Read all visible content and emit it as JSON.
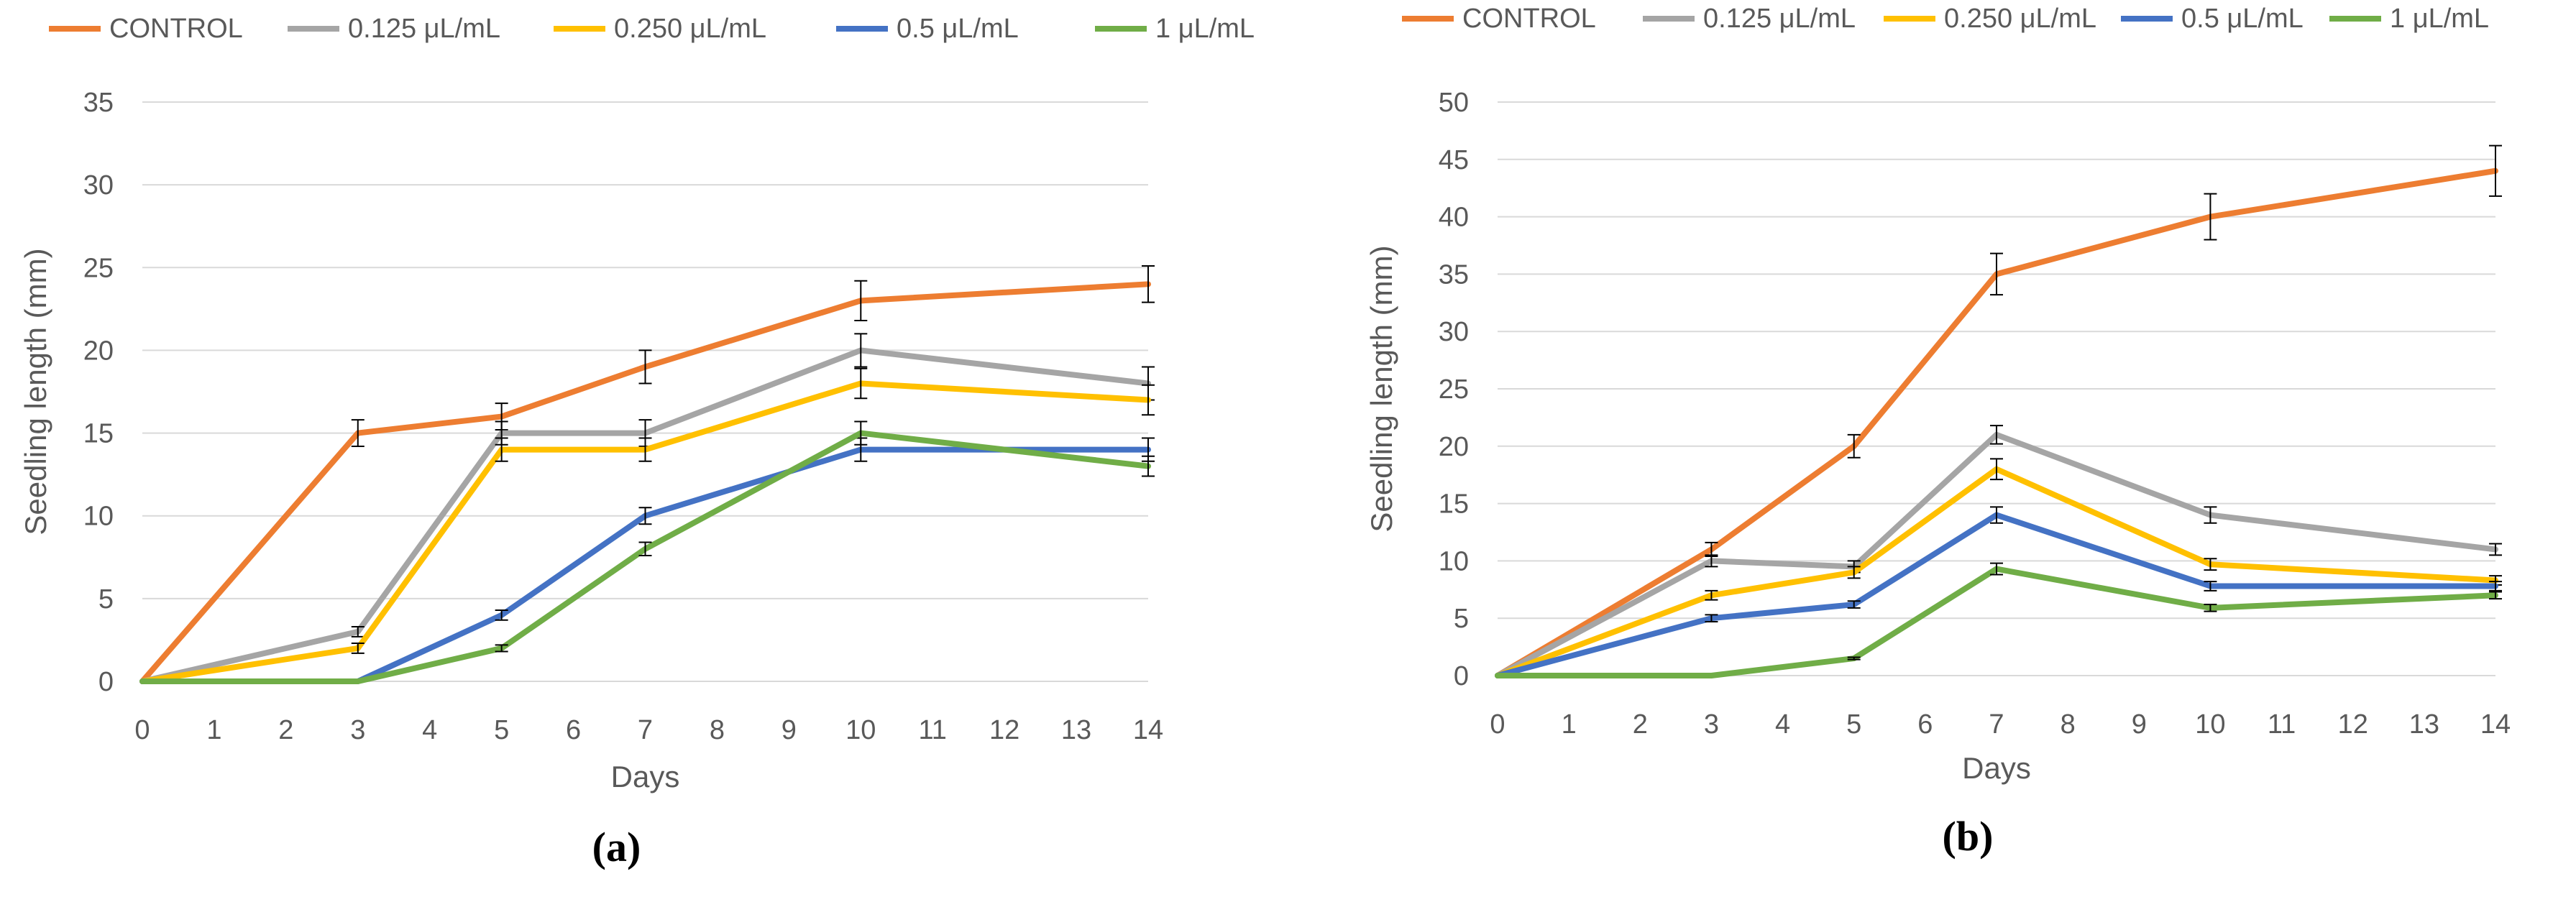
{
  "chart_data": [
    {
      "type": "line",
      "panel_label": "(a)",
      "xlabel": "Days",
      "ylabel": "Seedling length (mm)",
      "x_ticks": [
        0,
        1,
        2,
        3,
        4,
        5,
        6,
        7,
        8,
        9,
        10,
        11,
        12,
        13,
        14
      ],
      "x_tick_labels": [
        "0",
        "1",
        "2",
        "3",
        "4",
        "5",
        "6",
        "7",
        "8",
        "9",
        "10",
        "11",
        "12",
        "13",
        "14"
      ],
      "xlim": [
        0,
        14
      ],
      "y_ticks": [
        0,
        5,
        10,
        15,
        20,
        25,
        30,
        35
      ],
      "y_tick_labels": [
        "0",
        "5",
        "10",
        "15",
        "20",
        "25",
        "30",
        "35"
      ],
      "ylim": [
        0,
        35
      ],
      "grid": true,
      "legend_position": "top",
      "x": [
        0,
        3,
        5,
        7,
        10,
        14
      ],
      "series": [
        {
          "name": "CONTROL",
          "color": "#ED7D31",
          "values": [
            0,
            15,
            16,
            19,
            23,
            24
          ],
          "errors": [
            0,
            0.8,
            0.8,
            1.0,
            1.2,
            1.1
          ]
        },
        {
          "name": "0.125 μL/mL",
          "color": "#A5A5A5",
          "values": [
            0,
            3,
            15,
            15,
            20,
            18
          ],
          "errors": [
            0,
            0.3,
            0.7,
            0.8,
            1.0,
            1.0
          ]
        },
        {
          "name": "0.250 μL/mL",
          "color": "#FFC000",
          "values": [
            0,
            2,
            14,
            14,
            18,
            17
          ],
          "errors": [
            0,
            0.3,
            0.7,
            0.7,
            0.9,
            0.9
          ]
        },
        {
          "name": "0.5 μL/mL",
          "color": "#4472C4",
          "values": [
            0,
            0,
            4,
            10,
            14,
            14
          ],
          "errors": [
            0,
            0,
            0.3,
            0.5,
            0.7,
            0.7
          ]
        },
        {
          "name": "1 μL/mL",
          "color": "#70AD47",
          "values": [
            0,
            0,
            2,
            8,
            15,
            13
          ],
          "errors": [
            0,
            0,
            0.2,
            0.4,
            0.7,
            0.6
          ]
        }
      ]
    },
    {
      "type": "line",
      "panel_label": "(b)",
      "xlabel": "Days",
      "ylabel": "Seedling length (mm)",
      "x_ticks": [
        0,
        1,
        2,
        3,
        4,
        5,
        6,
        7,
        8,
        9,
        10,
        11,
        12,
        13,
        14
      ],
      "x_tick_labels": [
        "0",
        "1",
        "2",
        "3",
        "4",
        "5",
        "6",
        "7",
        "8",
        "9",
        "10",
        "11",
        "12",
        "13",
        "14"
      ],
      "xlim": [
        0,
        14
      ],
      "y_ticks": [
        0,
        5,
        10,
        15,
        20,
        25,
        30,
        35,
        40,
        45,
        50
      ],
      "y_tick_labels": [
        "0",
        "5",
        "10",
        "15",
        "20",
        "25",
        "30",
        "35",
        "40",
        "45",
        "50"
      ],
      "ylim": [
        0,
        50
      ],
      "grid": true,
      "legend_position": "top",
      "x": [
        0,
        3,
        5,
        7,
        10,
        14
      ],
      "series": [
        {
          "name": "CONTROL",
          "color": "#ED7D31",
          "values": [
            0,
            11,
            20,
            35,
            40,
            44
          ],
          "errors": [
            0,
            0.6,
            1.0,
            1.8,
            2.0,
            2.2
          ]
        },
        {
          "name": "0.125 μL/mL",
          "color": "#A5A5A5",
          "values": [
            0,
            10,
            9.5,
            21,
            14,
            11
          ],
          "errors": [
            0,
            0.5,
            0.5,
            0.8,
            0.7,
            0.5
          ]
        },
        {
          "name": "0.250 μL/mL",
          "color": "#FFC000",
          "values": [
            0,
            7,
            9,
            18,
            9.7,
            8.3
          ],
          "errors": [
            0,
            0.4,
            0.5,
            0.9,
            0.5,
            0.4
          ]
        },
        {
          "name": "0.5 μL/mL",
          "color": "#4472C4",
          "values": [
            0,
            5,
            6.2,
            14,
            7.8,
            7.8
          ],
          "errors": [
            0,
            0.3,
            0.3,
            0.7,
            0.4,
            0.4
          ]
        },
        {
          "name": "1 μL/mL",
          "color": "#70AD47",
          "values": [
            0,
            0,
            1.5,
            9.3,
            5.9,
            7
          ],
          "errors": [
            0,
            0,
            0.1,
            0.5,
            0.3,
            0.3
          ]
        }
      ]
    }
  ]
}
